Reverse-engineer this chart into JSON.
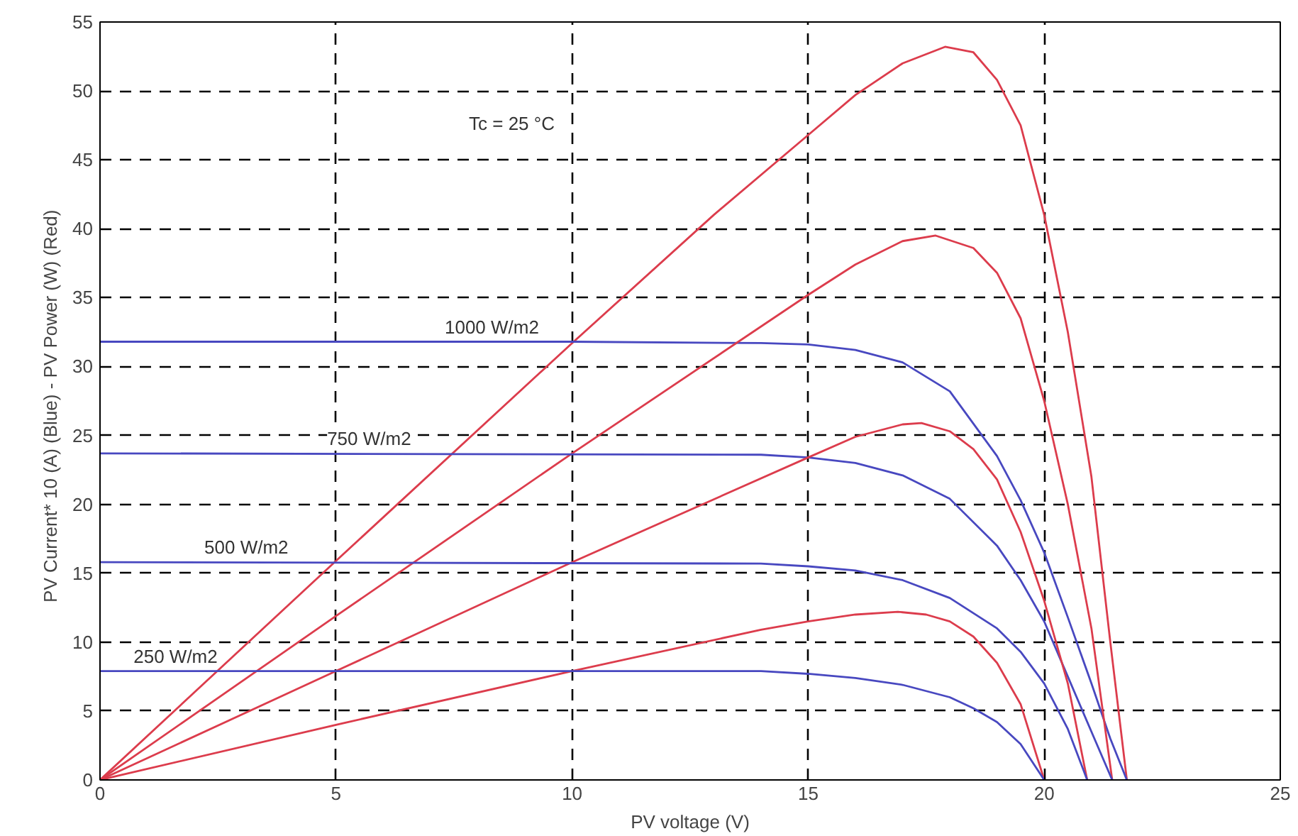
{
  "chart_data": {
    "type": "line",
    "xlabel": "PV voltage (V)",
    "ylabel": "PV Current* 10 (A) (Blue)  -  PV Power (W) (Red)",
    "xlim": [
      0,
      25
    ],
    "ylim": [
      0,
      55
    ],
    "xticks": [
      0,
      5,
      10,
      15,
      20,
      25
    ],
    "yticks": [
      0,
      5,
      10,
      15,
      20,
      25,
      30,
      35,
      40,
      45,
      50,
      55
    ],
    "grid": true,
    "line_style": "solid",
    "marker": "none",
    "annotations": [
      "Tc = 25 °C",
      {
        "text": "1000 W/m2",
        "x": 8.3,
        "y": 31.8
      },
      {
        "text": "750 W/m2",
        "x": 5.7,
        "y": 23.7
      },
      {
        "text": "500 W/m2",
        "x": 3.1,
        "y": 15.8
      },
      {
        "text": "250 W/m2",
        "x": 1.6,
        "y": 7.9
      }
    ],
    "series": [
      {
        "color": "#dc3c4c",
        "x": [
          0,
          5,
          10,
          13,
          15,
          16,
          17,
          17.9,
          18.5,
          19,
          19.5,
          20,
          20.5,
          21,
          21.4,
          21.75
        ],
        "values": [
          0,
          15.9,
          31.7,
          41,
          46.8,
          49.7,
          52,
          53.2,
          52.8,
          50.8,
          47.5,
          41,
          32.5,
          22,
          10,
          0
        ]
      },
      {
        "color": "#4848c0",
        "x": [
          0,
          10,
          14,
          15,
          16,
          17,
          18,
          19,
          19.5,
          20,
          20.5,
          21,
          21.4,
          21.75
        ],
        "values": [
          31.8,
          31.8,
          31.7,
          31.6,
          31.2,
          30.3,
          28.2,
          23.5,
          20.3,
          16.5,
          11.8,
          7,
          3,
          0
        ]
      },
      {
        "color": "#dc3c4c",
        "x": [
          0,
          5,
          10,
          15,
          16,
          17,
          17.7,
          18.5,
          19,
          19.5,
          20,
          20.5,
          21,
          21.44
        ],
        "values": [
          0,
          11.9,
          23.7,
          35.2,
          37.4,
          39.1,
          39.5,
          38.6,
          36.8,
          33.5,
          27.5,
          20,
          11,
          0
        ]
      },
      {
        "color": "#4848c0",
        "x": [
          0,
          14,
          15,
          16,
          17,
          18,
          19,
          19.5,
          20,
          20.5,
          21,
          21.44
        ],
        "values": [
          23.7,
          23.6,
          23.4,
          23,
          22.1,
          20.4,
          17,
          14.5,
          11.5,
          7.5,
          3.5,
          0
        ]
      },
      {
        "color": "#dc3c4c",
        "x": [
          0,
          5,
          10,
          15,
          16,
          17,
          17.4,
          18,
          18.5,
          19,
          19.5,
          20,
          20.5,
          20.91
        ],
        "values": [
          0,
          7.9,
          15.8,
          23.4,
          24.9,
          25.8,
          25.9,
          25.3,
          24,
          21.8,
          18,
          13,
          7,
          0
        ]
      },
      {
        "color": "#4848c0",
        "x": [
          0,
          14,
          15,
          16,
          17,
          18,
          19,
          19.5,
          20,
          20.5,
          20.91
        ],
        "values": [
          15.8,
          15.7,
          15.5,
          15.2,
          14.5,
          13.2,
          11,
          9.3,
          7,
          3.7,
          0
        ]
      },
      {
        "color": "#dc3c4c",
        "x": [
          0,
          5,
          10,
          14,
          15,
          16,
          16.9,
          17.5,
          18,
          18.5,
          19,
          19.5,
          20
        ],
        "values": [
          0,
          4,
          7.9,
          10.9,
          11.5,
          12,
          12.2,
          12,
          11.5,
          10.4,
          8.5,
          5.5,
          0
        ]
      },
      {
        "color": "#4848c0",
        "x": [
          0,
          14,
          15,
          16,
          17,
          18,
          18.5,
          19,
          19.5,
          20
        ],
        "values": [
          7.9,
          7.9,
          7.7,
          7.4,
          6.9,
          6,
          5.2,
          4.2,
          2.6,
          0
        ]
      }
    ]
  }
}
